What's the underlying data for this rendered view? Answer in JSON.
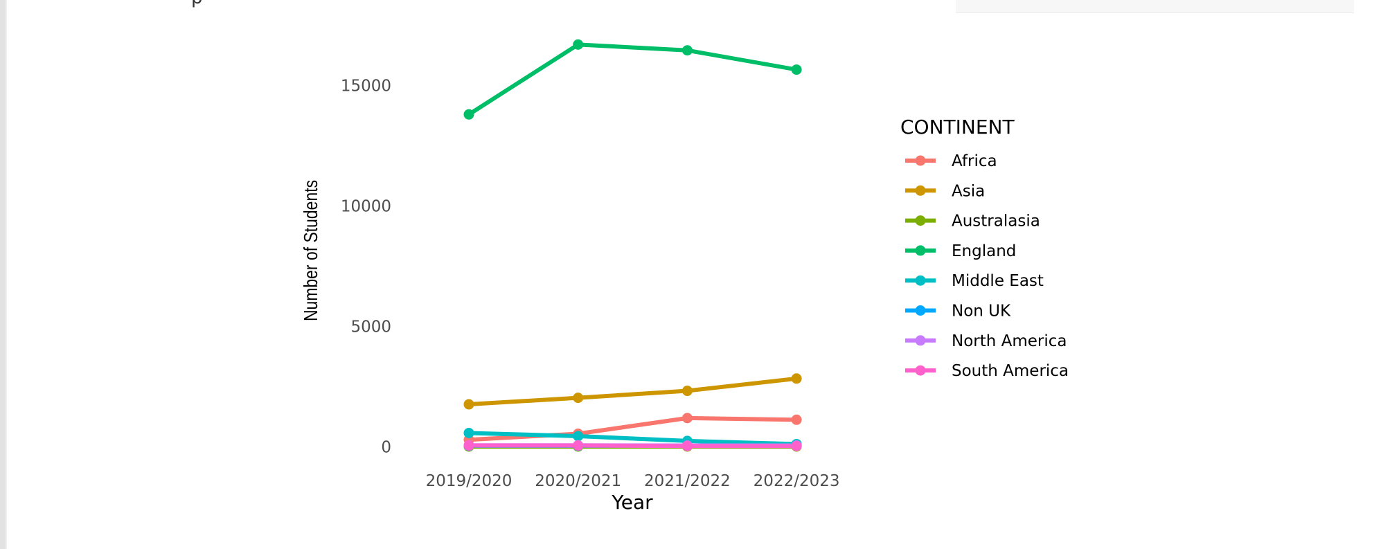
{
  "chart_data": {
    "type": "line",
    "title": "",
    "xlabel": "Year",
    "ylabel": "Number of Students",
    "x": [
      "2019/2020",
      "2020/2021",
      "2021/2022",
      "2022/2023"
    ],
    "ylim": [
      -700,
      17400
    ],
    "yticks": [
      0,
      5000,
      10000,
      15000
    ],
    "grid": false,
    "legend_title": "CONTINENT",
    "legend_position": "right",
    "series": [
      {
        "name": "Africa",
        "color": "#F8766D",
        "values": [
          300,
          550,
          1200,
          1130
        ]
      },
      {
        "name": "Asia",
        "color": "#CD9600",
        "values": [
          1770,
          2040,
          2330,
          2840
        ]
      },
      {
        "name": "Australasia",
        "color": "#7CAE00",
        "values": [
          20,
          20,
          20,
          20
        ]
      },
      {
        "name": "England",
        "color": "#00BE67",
        "values": [
          13800,
          16700,
          16460,
          15660
        ]
      },
      {
        "name": "Middle East",
        "color": "#00BFC4",
        "values": [
          580,
          450,
          250,
          120
        ]
      },
      {
        "name": "Non UK",
        "color": "#00A9FF",
        "values": [
          50,
          50,
          60,
          60
        ]
      },
      {
        "name": "North America",
        "color": "#C77CFF",
        "values": [
          70,
          70,
          60,
          60
        ]
      },
      {
        "name": "South America",
        "color": "#FF61CC",
        "values": [
          60,
          60,
          40,
          40
        ]
      }
    ]
  }
}
